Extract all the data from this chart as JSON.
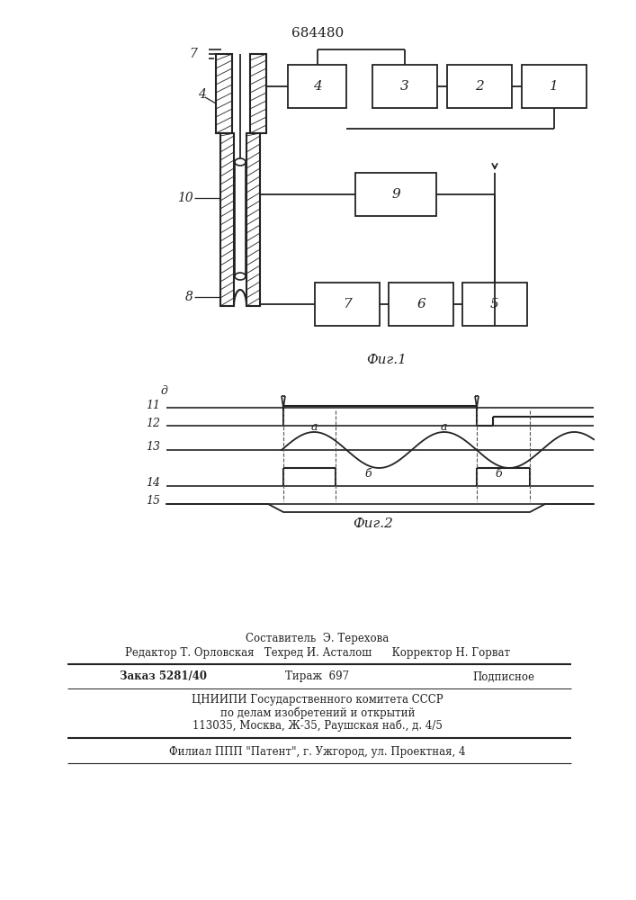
{
  "title": "684480",
  "fig1_caption": "Фиг.1",
  "fig2_caption": "Фиг.2",
  "line_color": "#222222",
  "footer_lines": [
    "Составитель  Э. Терехова",
    "Редактор Т. Орловская   Техред И. Асталош      Корректор Н. Горват",
    "Заказ 5281/40",
    "Тираж  697",
    "Подписное",
    "ЦНИИПИ Государственного комитета СССР",
    "по делам изобретений и открытий",
    "113035, Москва, Ж-35, Раушская наб., д. 4/5",
    "Филиал ППП \"Патент\", г. Ужгород, ул. Проектная, 4"
  ]
}
